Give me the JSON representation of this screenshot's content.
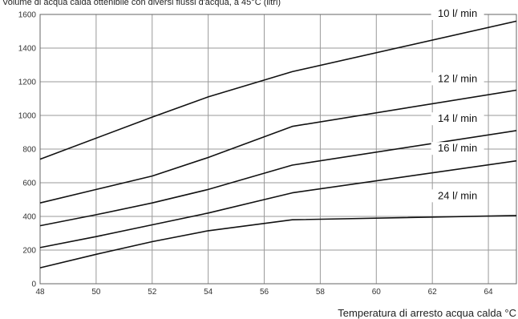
{
  "chart_data": {
    "type": "line",
    "title": "Volume di acqua calda ottenibile con diversi flussi d'acqua, a 45°C (litri)",
    "xlabel": "Temperatura di arresto acqua calda °C",
    "ylabel": "",
    "xlim": [
      48,
      65
    ],
    "ylim": [
      0,
      1600
    ],
    "x_ticks": [
      "48",
      "50",
      "52",
      "54",
      "56",
      "58",
      "60",
      "62",
      "64"
    ],
    "y_ticks": [
      "0",
      "200",
      "400",
      "600",
      "800",
      "1000",
      "1200",
      "1400",
      "1600"
    ],
    "grid": true,
    "series": [
      {
        "name": "10 l/ min",
        "points": [
          [
            48,
            740
          ],
          [
            52,
            990
          ],
          [
            54,
            1110
          ],
          [
            57,
            1260
          ],
          [
            65,
            1560
          ]
        ]
      },
      {
        "name": "12 l/ min",
        "points": [
          [
            48,
            480
          ],
          [
            50,
            560
          ],
          [
            52,
            640
          ],
          [
            54,
            750
          ],
          [
            57,
            935
          ],
          [
            65,
            1150
          ]
        ]
      },
      {
        "name": "14 l/ min",
        "points": [
          [
            48,
            345
          ],
          [
            50,
            410
          ],
          [
            52,
            480
          ],
          [
            54,
            560
          ],
          [
            57,
            705
          ],
          [
            65,
            910
          ]
        ]
      },
      {
        "name": "16 l/ min",
        "points": [
          [
            48,
            215
          ],
          [
            50,
            280
          ],
          [
            52,
            350
          ],
          [
            54,
            420
          ],
          [
            57,
            540
          ],
          [
            65,
            730
          ]
        ]
      },
      {
        "name": "24 l/ min",
        "points": [
          [
            48,
            95
          ],
          [
            50,
            175
          ],
          [
            52,
            250
          ],
          [
            54,
            315
          ],
          [
            57,
            380
          ],
          [
            65,
            405
          ]
        ]
      }
    ]
  }
}
